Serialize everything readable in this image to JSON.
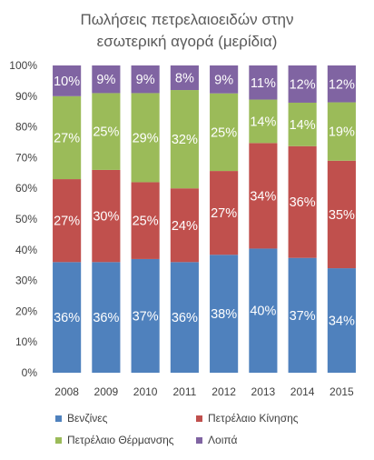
{
  "chart_data": {
    "type": "bar",
    "stacked": "percent",
    "title_lines": [
      "Πωλήσεις πετρελαιοειδών στην",
      "εσωτερική αγορά (μερίδια)"
    ],
    "categories": [
      "2008",
      "2009",
      "2010",
      "2011",
      "2012",
      "2013",
      "2014",
      "2015"
    ],
    "ylim": [
      0,
      100
    ],
    "yticks": [
      "0%",
      "10%",
      "20%",
      "30%",
      "40%",
      "50%",
      "60%",
      "70%",
      "80%",
      "90%",
      "100%"
    ],
    "grid": false,
    "legend_position": "bottom",
    "series": [
      {
        "name": "Βενζίνες",
        "color": "#4f81bd",
        "values": [
          36,
          36,
          37,
          36,
          38,
          40,
          37,
          34
        ],
        "labels": [
          "36%",
          "36%",
          "37%",
          "36%",
          "38%",
          "40%",
          "37%",
          "34%"
        ]
      },
      {
        "name": "Πετρέλαιο Κίνησης",
        "color": "#c0504d",
        "values": [
          27,
          30,
          25,
          24,
          27,
          34,
          36,
          35
        ],
        "labels": [
          "27%",
          "30%",
          "25%",
          "24%",
          "27%",
          "34%",
          "36%",
          "35%"
        ]
      },
      {
        "name": "Πετρέλαιο Θέρμανσης",
        "color": "#9bbb59",
        "values": [
          27,
          25,
          29,
          32,
          25,
          14,
          14,
          19
        ],
        "labels": [
          "27%",
          "25%",
          "29%",
          "32%",
          "25%",
          "14%",
          "14%",
          "19%"
        ]
      },
      {
        "name": "Λοιπά",
        "color": "#8064a2",
        "values": [
          10,
          9,
          9,
          8,
          9,
          11,
          12,
          12
        ],
        "labels": [
          "10%",
          "9%",
          "9%",
          "8%",
          "9%",
          "11%",
          "12%",
          "12%"
        ]
      }
    ]
  }
}
